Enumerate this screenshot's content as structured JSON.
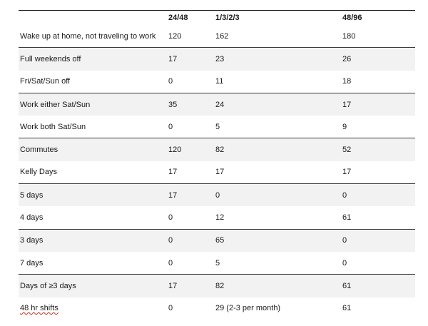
{
  "table": {
    "headers": [
      "",
      "24/48",
      "1/3/2/3",
      "48/96"
    ],
    "rows": [
      {
        "label": "Wake up at home, not traveling to work",
        "v1": "120",
        "v2": "162",
        "v3": "180"
      },
      {
        "label": "Full weekends off",
        "v1": "17",
        "v2": "23",
        "v3": "26"
      },
      {
        "label": "Fri/Sat/Sun off",
        "v1": "0",
        "v2": "11",
        "v3": "18"
      },
      {
        "label": "Work either Sat/Sun",
        "v1": "35",
        "v2": "24",
        "v3": "17"
      },
      {
        "label": "Work both Sat/Sun",
        "v1": "0",
        "v2": "5",
        "v3": "9"
      },
      {
        "label": "Commutes",
        "v1": "120",
        "v2": "82",
        "v3": "52"
      },
      {
        "label": "Kelly Days",
        "v1": "17",
        "v2": "17",
        "v3": "17"
      },
      {
        "label": "5 days",
        "v1": "17",
        "v2": "0",
        "v3": "0"
      },
      {
        "label": "4 days",
        "v1": "0",
        "v2": "12",
        "v3": "61"
      },
      {
        "label": "3 days",
        "v1": "0",
        "v2": "65",
        "v3": "0"
      },
      {
        "label": "7 days",
        "v1": "0",
        "v2": "5",
        "v3": "0"
      },
      {
        "label": "Days of ≥3 days",
        "v1": "17",
        "v2": "82",
        "v3": "61"
      },
      {
        "label": "48 hr shifts",
        "v1": "0",
        "v2": "29 (2-3 per month)",
        "v3": "61"
      }
    ]
  }
}
